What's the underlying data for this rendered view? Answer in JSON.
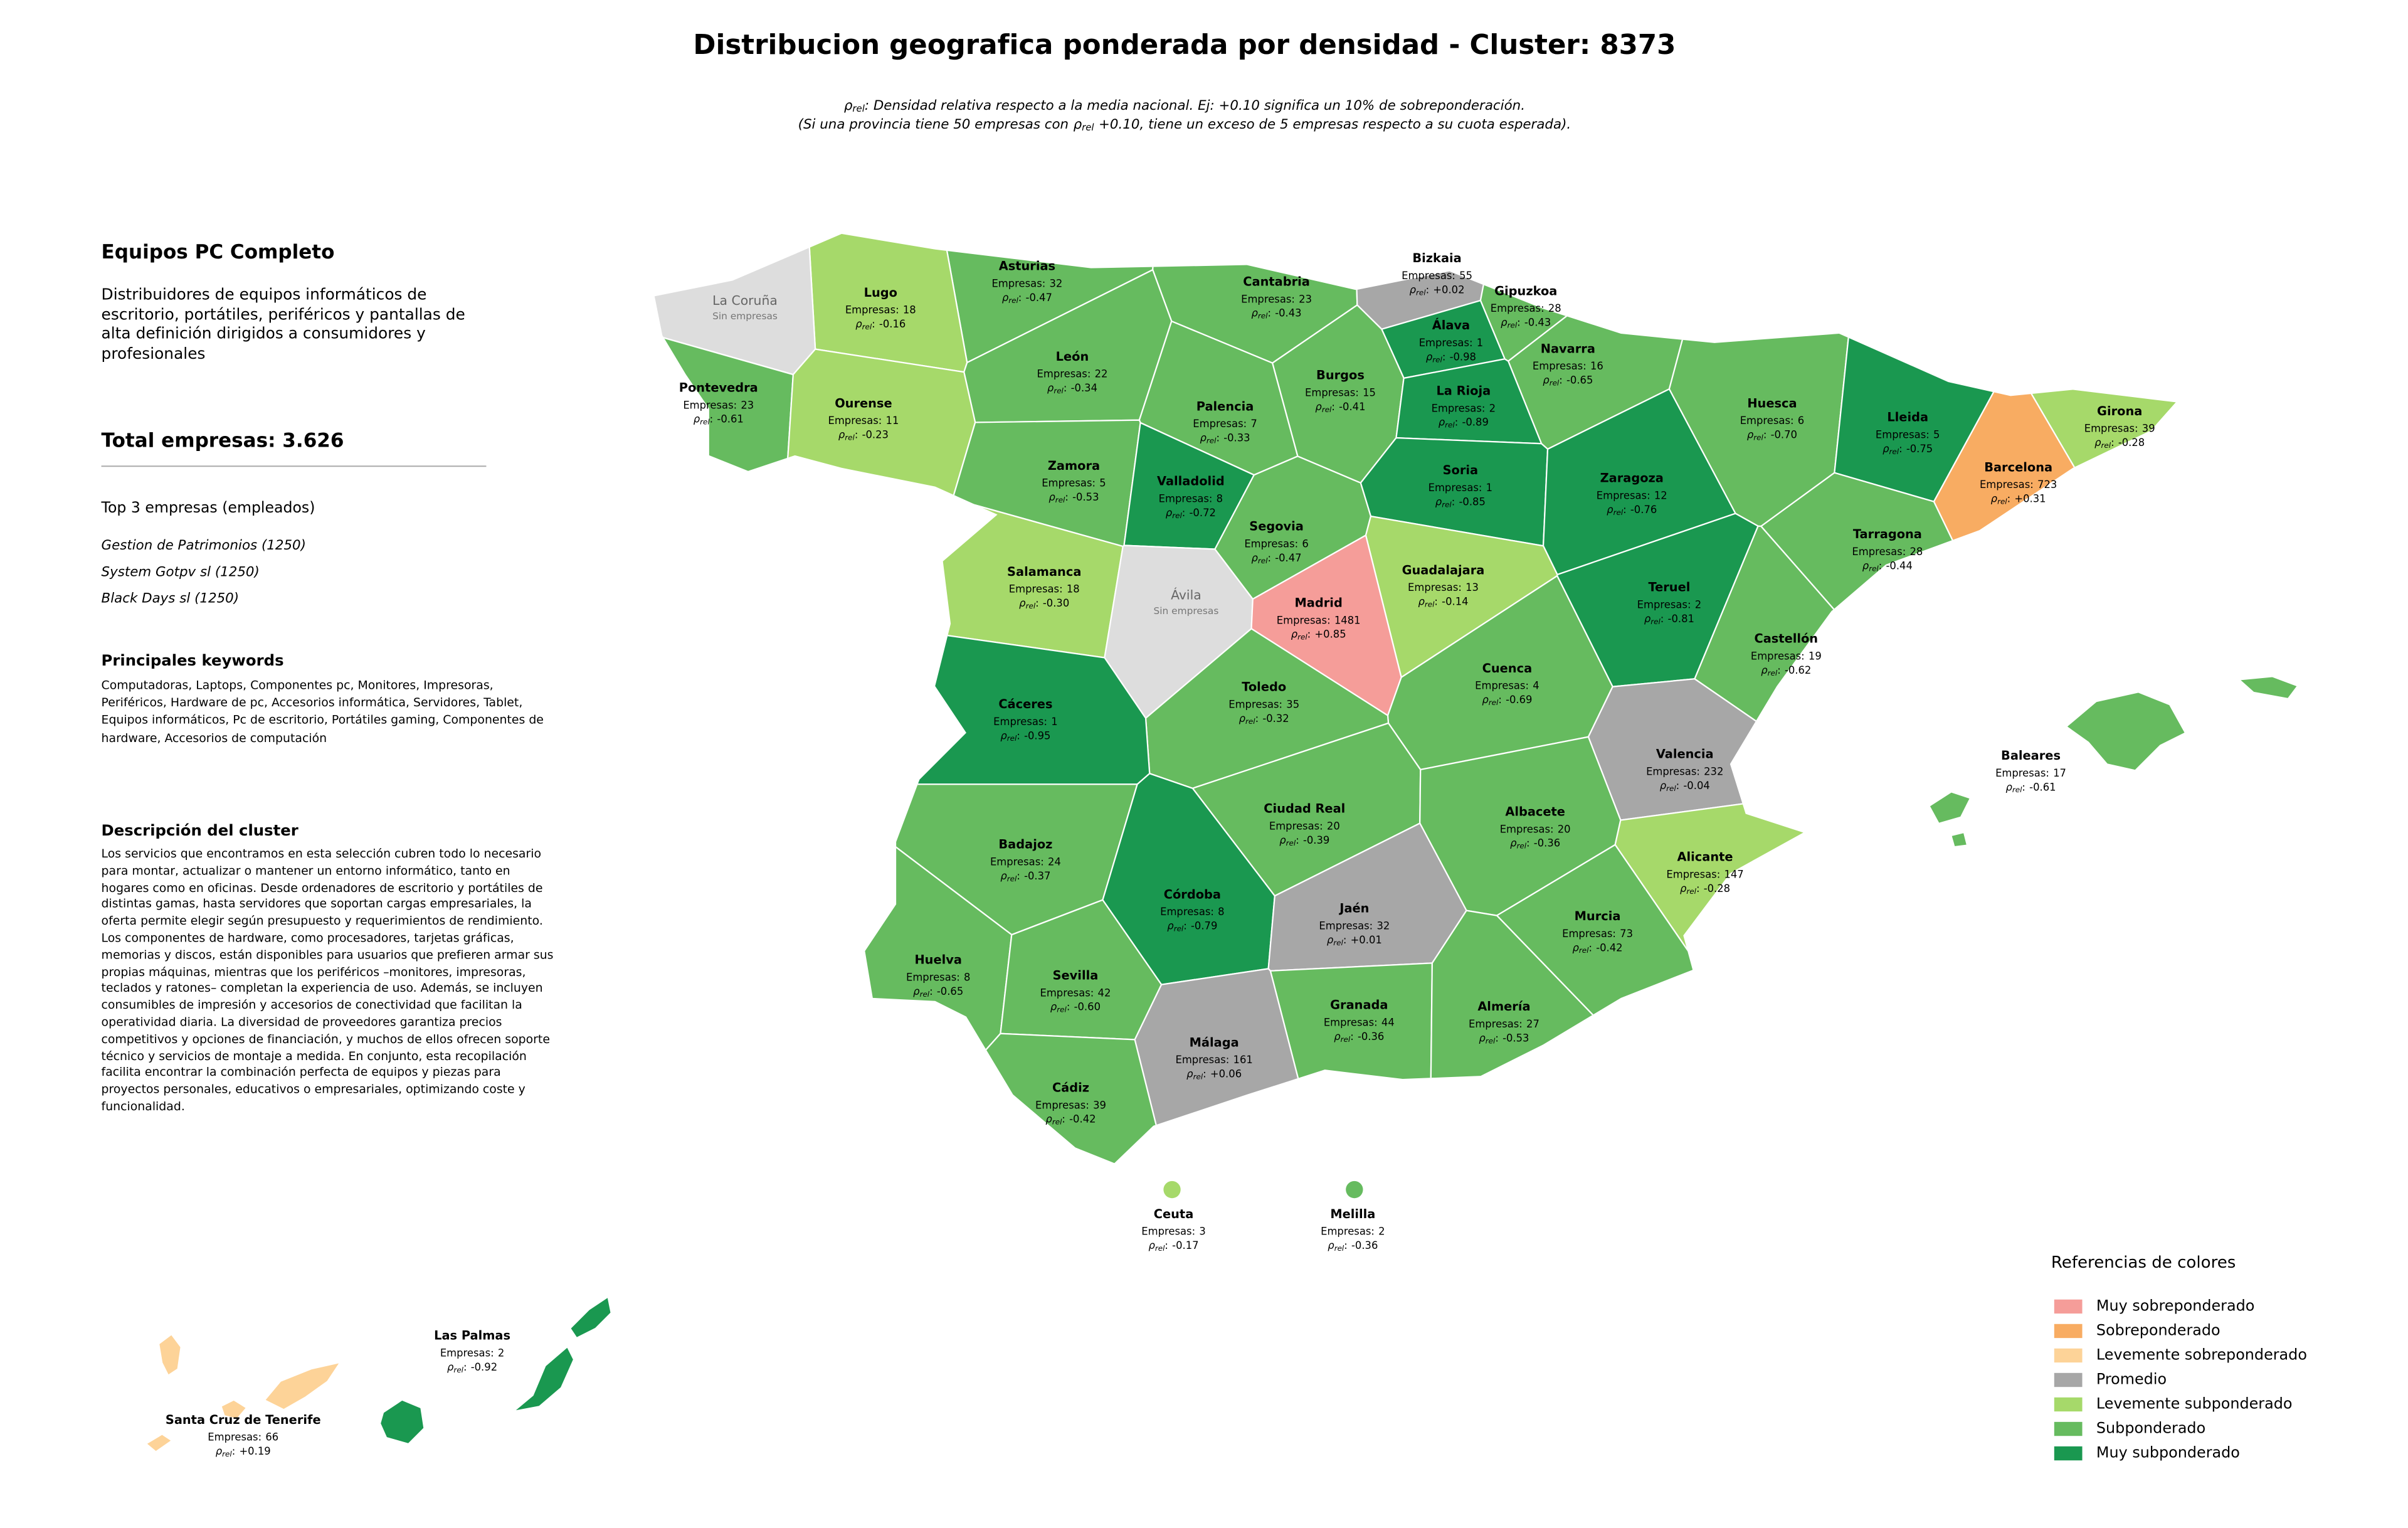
{
  "title": "Distribucion geografica ponderada por densidad - Cluster: 8373",
  "rho_symbol": "ρ",
  "rho_sub": "rel",
  "rho_sep": ":",
  "empresas_prefix": "Empresas:",
  "subtitle": {
    "line1_after": ": Densidad relativa respecto a la media nacional. Ej: +0.10 significa un 10% de sobreponderación.",
    "line2_before": "(Si una provincia tiene 50 empresas con",
    "line2_after": "+0.10, tiene un exceso de 5 empresas respecto a su cuota esperada)."
  },
  "panel": {
    "heading": "Equipos PC Completo",
    "description": "Distribuidores de equipos informáticos de escritorio, portátiles, periféricos y pantallas de alta definición dirigidos a consumidores y profesionales",
    "total": "Total empresas: 3.626",
    "top_title": "Top 3 empresas (empleados)",
    "top": [
      "Gestion de Patrimonios (1250)",
      "System Gotpv sl (1250)",
      "Black Days sl (1250)"
    ],
    "keywords_title": "Principales keywords",
    "keywords": "Computadoras, Laptops, Componentes pc, Monitores, Impresoras, Periféricos, Hardware de pc, Accesorios informática, Servidores, Tablet, Equipos informáticos, Pc de escritorio, Portátiles gaming, Componentes de hardware, Accesorios de computación",
    "cluster_title": "Descripción del cluster",
    "cluster_text": "Los servicios que encontramos en esta selección cubren todo lo necesario para montar, actualizar o mantener un entorno informático, tanto en hogares como en oficinas. Desde ordenadores de escritorio y portátiles de distintas gamas, hasta servidores que soportan cargas empresariales, la oferta permite elegir según presupuesto y requerimientos de rendimiento. Los componentes de hardware, como procesadores, tarjetas gráficas, memorias y discos, están disponibles para usuarios que prefieren armar sus propias máquinas, mientras que los periféricos –monitores, impresoras, teclados y ratones– completan la experiencia de uso. Además, se incluyen consumibles de impresión y accesorios de conectividad que facilitan la operatividad diaria. La diversidad de proveedores garantiza precios competitivos y opciones de financiación, y muchos de ellos ofrecen soporte técnico y servicios de montaje a medida. En conjunto, esta recopilación facilita encontrar la combinación perfecta de equipos y piezas para proyectos personales, educativos o empresariales, optimizando coste y funcionalidad."
  },
  "legend": {
    "title": "Referencias de colores",
    "items": [
      {
        "label": "Muy sobreponderado",
        "color": "#f59d99"
      },
      {
        "label": "Sobreponderado",
        "color": "#f8ac62"
      },
      {
        "label": "Levemente sobreponderado",
        "color": "#fdd398"
      },
      {
        "label": "Promedio",
        "color": "#a7a7a7"
      },
      {
        "label": "Levemente subponderado",
        "color": "#a6d96a"
      },
      {
        "label": "Subponderado",
        "color": "#66bb5f"
      },
      {
        "label": "Muy subponderado",
        "color": "#1a9850"
      }
    ]
  },
  "provinces": [
    {
      "name": "Asturias",
      "empresas": 32,
      "rho": "-0.47",
      "color": "#66bb5f"
    },
    {
      "name": "Cantabria",
      "empresas": 23,
      "rho": "-0.43",
      "color": "#66bb5f"
    },
    {
      "name": "Bizkaia",
      "empresas": 55,
      "rho": "+0.02",
      "color": "#a7a7a7"
    },
    {
      "name": "Gipuzkoa",
      "empresas": 28,
      "rho": "-0.43",
      "color": "#66bb5f"
    },
    {
      "name": "Lugo",
      "empresas": 18,
      "rho": "-0.16",
      "color": "#a6d96a"
    },
    {
      "name": "La Coruña",
      "note": "Sin empresas",
      "color": "#dddddd"
    },
    {
      "name": "Álava",
      "empresas": 1,
      "rho": "-0.98",
      "color": "#1a9850"
    },
    {
      "name": "Navarra",
      "empresas": 16,
      "rho": "-0.65",
      "color": "#66bb5f"
    },
    {
      "name": "León",
      "empresas": 22,
      "rho": "-0.34",
      "color": "#66bb5f"
    },
    {
      "name": "Burgos",
      "empresas": 15,
      "rho": "-0.41",
      "color": "#66bb5f"
    },
    {
      "name": "Pontevedra",
      "empresas": 23,
      "rho": "-0.61",
      "color": "#66bb5f"
    },
    {
      "name": "La Rioja",
      "empresas": 2,
      "rho": "-0.89",
      "color": "#1a9850"
    },
    {
      "name": "Palencia",
      "empresas": 7,
      "rho": "-0.33",
      "color": "#66bb5f"
    },
    {
      "name": "Ourense",
      "empresas": 11,
      "rho": "-0.23",
      "color": "#a6d96a"
    },
    {
      "name": "Huesca",
      "empresas": 6,
      "rho": "-0.70",
      "color": "#66bb5f"
    },
    {
      "name": "Girona",
      "empresas": 39,
      "rho": "-0.28",
      "color": "#a6d96a"
    },
    {
      "name": "Lleida",
      "empresas": 5,
      "rho": "-0.75",
      "color": "#1a9850"
    },
    {
      "name": "Zamora",
      "empresas": 5,
      "rho": "-0.53",
      "color": "#66bb5f"
    },
    {
      "name": "Barcelona",
      "empresas": 723,
      "rho": "+0.31",
      "color": "#f8ac62"
    },
    {
      "name": "Soria",
      "empresas": 1,
      "rho": "-0.85",
      "color": "#1a9850"
    },
    {
      "name": "Zaragoza",
      "empresas": 12,
      "rho": "-0.76",
      "color": "#1a9850"
    },
    {
      "name": "Valladolid",
      "empresas": 8,
      "rho": "-0.72",
      "color": "#1a9850"
    },
    {
      "name": "Segovia",
      "empresas": 6,
      "rho": "-0.47",
      "color": "#66bb5f"
    },
    {
      "name": "Tarragona",
      "empresas": 28,
      "rho": "-0.44",
      "color": "#66bb5f"
    },
    {
      "name": "Salamanca",
      "empresas": 18,
      "rho": "-0.30",
      "color": "#a6d96a"
    },
    {
      "name": "Guadalajara",
      "empresas": 13,
      "rho": "-0.14",
      "color": "#a6d96a"
    },
    {
      "name": "Ávila",
      "note": "Sin empresas",
      "color": "#dddddd"
    },
    {
      "name": "Teruel",
      "empresas": 2,
      "rho": "-0.81",
      "color": "#1a9850"
    },
    {
      "name": "Madrid",
      "empresas": 1481,
      "rho": "+0.85",
      "color": "#f59d99"
    },
    {
      "name": "Castellón",
      "empresas": 19,
      "rho": "-0.62",
      "color": "#66bb5f"
    },
    {
      "name": "Cuenca",
      "empresas": 4,
      "rho": "-0.69",
      "color": "#66bb5f"
    },
    {
      "name": "Toledo",
      "empresas": 35,
      "rho": "-0.32",
      "color": "#66bb5f"
    },
    {
      "name": "Cáceres",
      "empresas": 1,
      "rho": "-0.95",
      "color": "#1a9850"
    },
    {
      "name": "Valencia",
      "empresas": 232,
      "rho": "-0.04",
      "color": "#a7a7a7"
    },
    {
      "name": "Ciudad Real",
      "empresas": 20,
      "rho": "-0.39",
      "color": "#66bb5f"
    },
    {
      "name": "Albacete",
      "empresas": 20,
      "rho": "-0.36",
      "color": "#66bb5f"
    },
    {
      "name": "Badajoz",
      "empresas": 24,
      "rho": "-0.37",
      "color": "#66bb5f"
    },
    {
      "name": "Alicante",
      "empresas": 147,
      "rho": "-0.28",
      "color": "#a6d96a"
    },
    {
      "name": "Córdoba",
      "empresas": 8,
      "rho": "-0.79",
      "color": "#1a9850"
    },
    {
      "name": "Jaén",
      "empresas": 32,
      "rho": "+0.01",
      "color": "#a7a7a7"
    },
    {
      "name": "Murcia",
      "empresas": 73,
      "rho": "-0.42",
      "color": "#66bb5f"
    },
    {
      "name": "Huelva",
      "empresas": 8,
      "rho": "-0.65",
      "color": "#66bb5f"
    },
    {
      "name": "Sevilla",
      "empresas": 42,
      "rho": "-0.60",
      "color": "#66bb5f"
    },
    {
      "name": "Granada",
      "empresas": 44,
      "rho": "-0.36",
      "color": "#66bb5f"
    },
    {
      "name": "Almería",
      "empresas": 27,
      "rho": "-0.53",
      "color": "#66bb5f"
    },
    {
      "name": "Málaga",
      "empresas": 161,
      "rho": "+0.06",
      "color": "#a7a7a7"
    },
    {
      "name": "Cádiz",
      "empresas": 39,
      "rho": "-0.42",
      "color": "#66bb5f"
    },
    {
      "name": "Baleares",
      "empresas": 17,
      "rho": "-0.61",
      "color": "#66bb5f"
    },
    {
      "name": "Ceuta",
      "empresas": 3,
      "rho": "-0.17",
      "color": "#a6d96a"
    },
    {
      "name": "Melilla",
      "empresas": 2,
      "rho": "-0.36",
      "color": "#66bb5f"
    },
    {
      "name": "Las Palmas",
      "empresas": 2,
      "rho": "-0.92",
      "color": "#1a9850"
    },
    {
      "name": "Santa Cruz de Tenerife",
      "empresas": 66,
      "rho": "+0.19",
      "color": "#fdd398"
    }
  ]
}
